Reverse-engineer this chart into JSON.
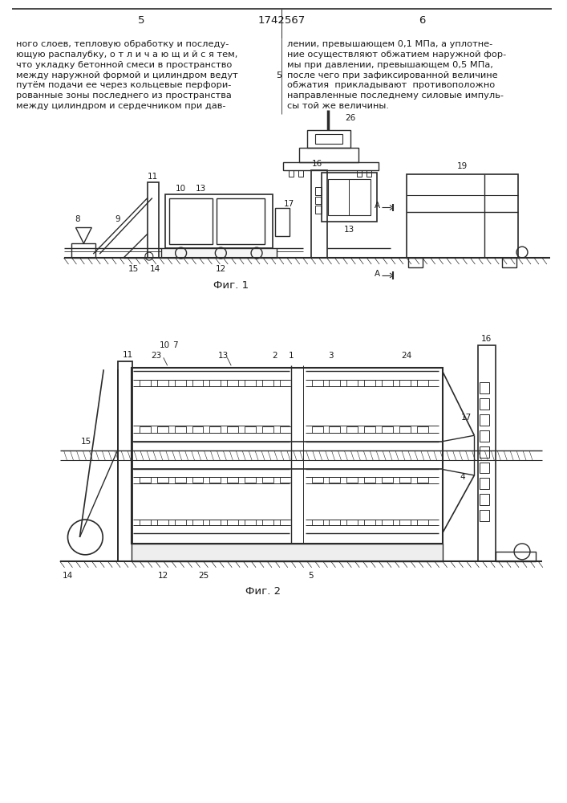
{
  "page_number_left": "5",
  "page_number_center": "1742567",
  "page_number_right": "6",
  "text_left": "ного слоев, тепловую обработку и последу-\nющую распалубку, о т л и ч а ю щ и й с я тем,\nчто укладку бетонной смеси в пространство\nмежду наружной формой и цилиндром ведут\nпутём подачи ее через кольцевые перфори-\nрованные зоны последнего из пространства\nмежду цилиндром и сердечником при дав-",
  "text_right": "лении, превышающем 0,1 МПа, а уплотне-\nние осуществляют обжатием наружной фор-\nмы при давлении, превышающем 0,5 МПа,\nпосле чего при зафиксированной величине\nобжатия  прикладывают  противоположно\nнаправленные последнему силовые импуль-\nсы той же величины.",
  "line_number": "5",
  "fig1_caption": "Фиг. 1",
  "fig2_caption": "Фиг. 2",
  "bg_color": "#ffffff",
  "line_color": "#2a2a2a",
  "text_color": "#1a1a1a",
  "font_size_body": 8.2,
  "font_size_labels": 7.5,
  "font_size_caption": 9.5,
  "font_size_page": 9.5
}
